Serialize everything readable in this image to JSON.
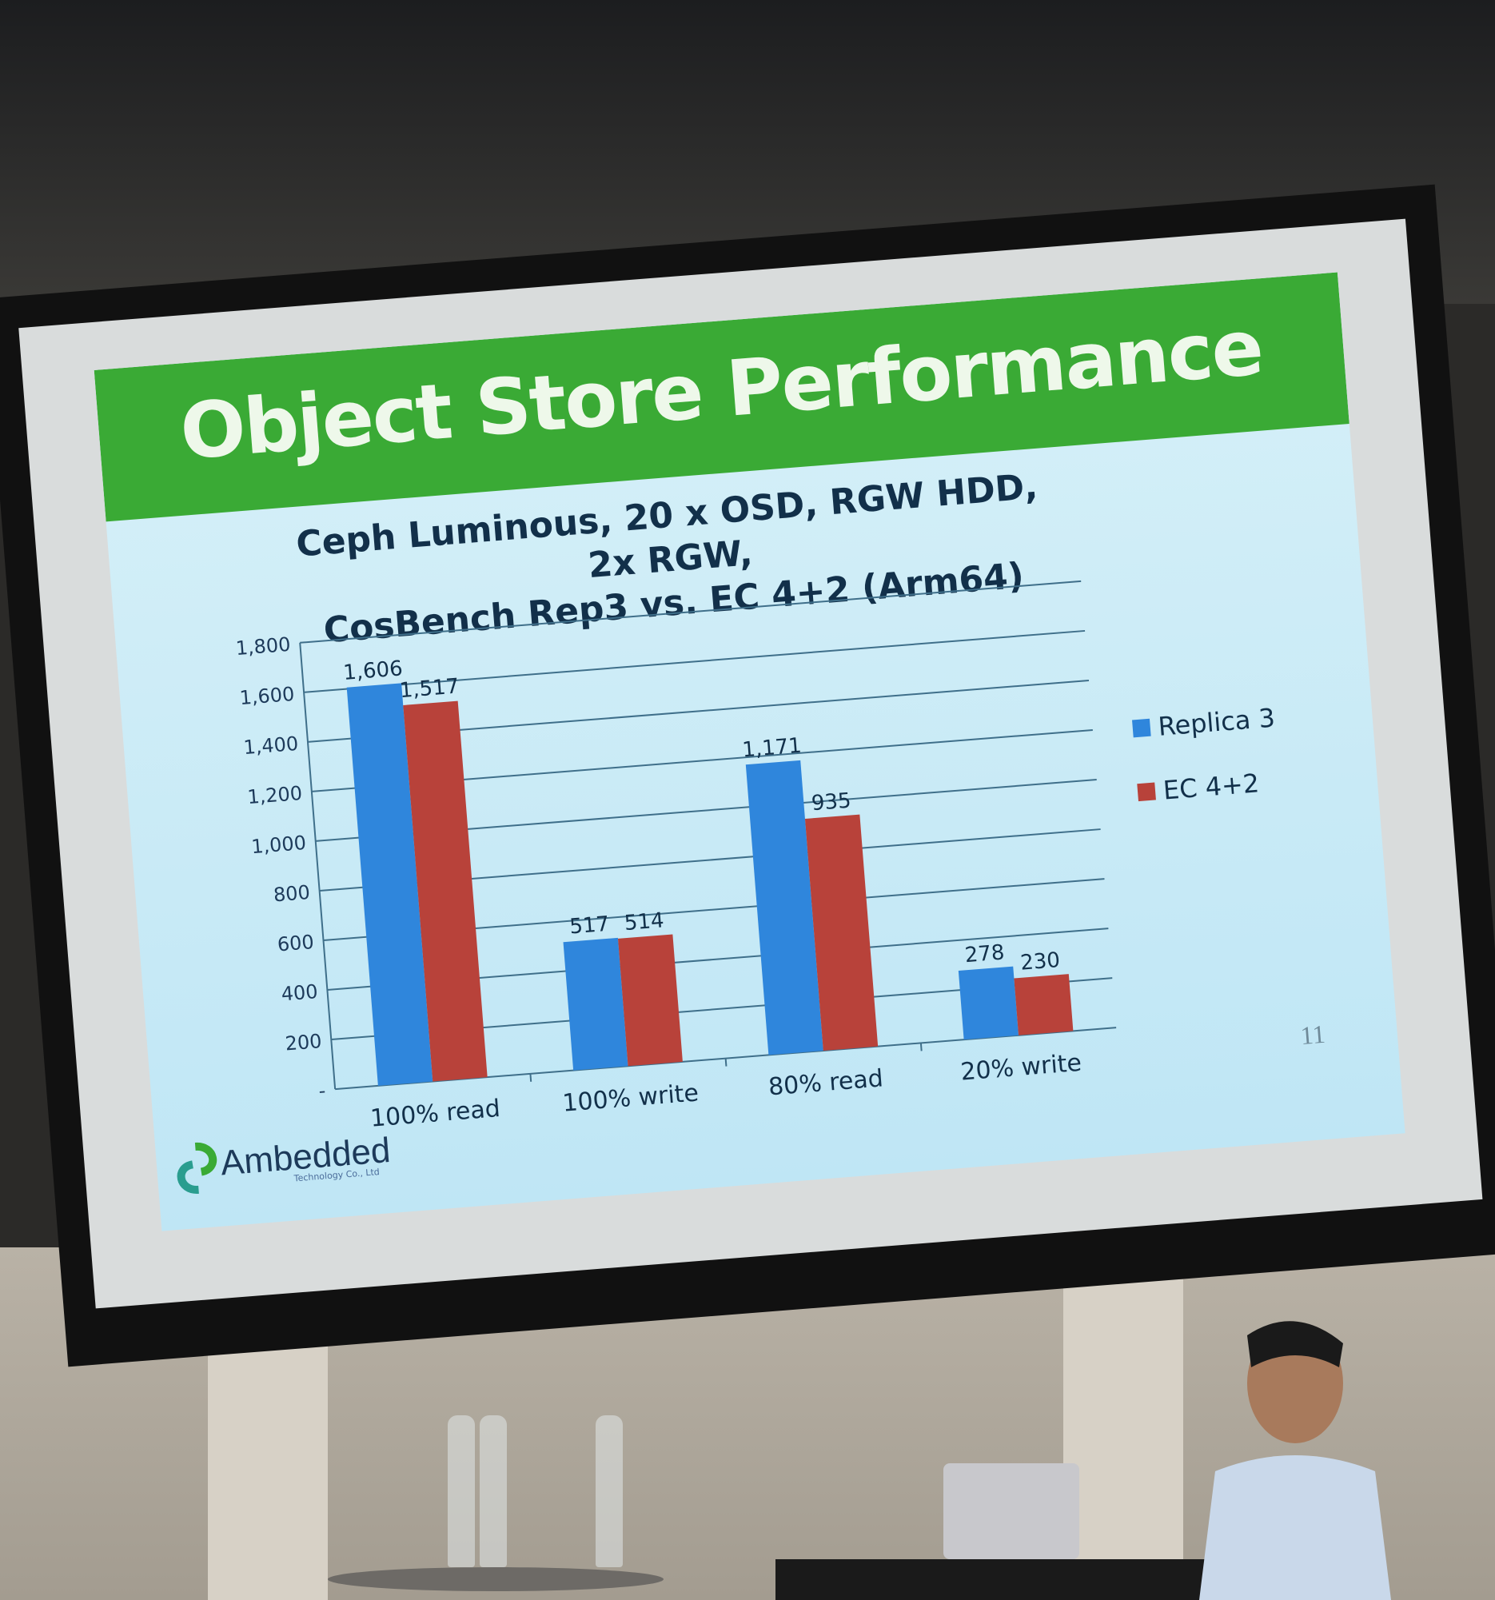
{
  "slide": {
    "title": "Object Store Performance",
    "subtitle_line1": "Ceph Luminous, 20 x OSD, RGW HDD, 2x RGW,",
    "subtitle_line2": "CosBench Rep3 vs. EC 4+2 (Arm64)",
    "logo_text": "Ambedded",
    "logo_subtext": "Technology Co., Ltd",
    "page_number": "11",
    "header_color": "#3aaa35"
  },
  "chart_data": {
    "type": "bar",
    "categories": [
      "100% read",
      "100% write",
      "80% read",
      "20% write"
    ],
    "series": [
      {
        "name": "Replica 3",
        "color": "#2f86dc",
        "values": [
          1606,
          517,
          1171,
          278
        ],
        "labels": [
          "1,606",
          "517",
          "1,171",
          "278"
        ]
      },
      {
        "name": "EC 4+2",
        "color": "#b8423a",
        "values": [
          1517,
          514,
          935,
          230
        ],
        "labels": [
          "1,517",
          "514",
          "935",
          "230"
        ]
      }
    ],
    "ylim": [
      0,
      1800
    ],
    "yticks": [
      "-",
      "200",
      "400",
      "600",
      "800",
      "1,000",
      "1,200",
      "1,400",
      "1,600",
      "1,800"
    ],
    "grid": true,
    "legend": "right"
  }
}
